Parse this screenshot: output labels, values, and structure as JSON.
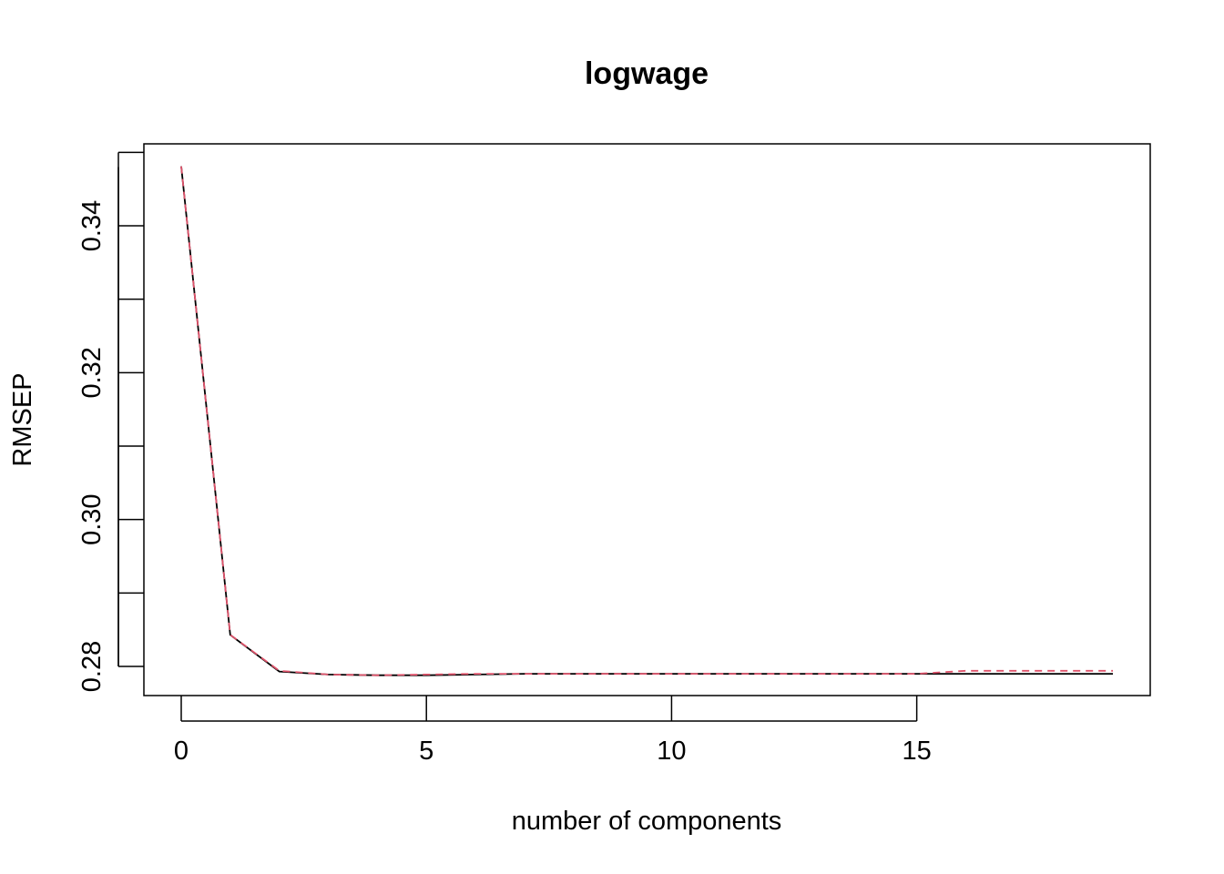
{
  "chart_data": {
    "type": "line",
    "title": "logwage",
    "xlabel": "number of components",
    "ylabel": "RMSEP",
    "xlim": [
      0,
      19
    ],
    "ylim": [
      0.276,
      0.35
    ],
    "x_ticks": [
      0,
      5,
      10,
      15
    ],
    "y_ticks_labeled": [
      0.28,
      0.3,
      0.32,
      0.34
    ],
    "y_ticks_minor": [
      0.29,
      0.31,
      0.33
    ],
    "x": [
      0,
      1,
      2,
      3,
      4,
      5,
      6,
      7,
      8,
      9,
      10,
      11,
      12,
      13,
      14,
      15,
      16,
      17,
      18,
      19
    ],
    "series": [
      {
        "style": "solid",
        "color": "#000000",
        "values": [
          0.3481,
          0.2843,
          0.2793,
          0.2789,
          0.2788,
          0.2788,
          0.2789,
          0.279,
          0.279,
          0.279,
          0.279,
          0.279,
          0.279,
          0.279,
          0.279,
          0.279,
          0.279,
          0.279,
          0.279,
          0.279
        ]
      },
      {
        "style": "dashed",
        "color": "#DF536B",
        "values": [
          0.3481,
          0.2843,
          0.2794,
          0.2789,
          0.2788,
          0.2789,
          0.279,
          0.279,
          0.279,
          0.279,
          0.279,
          0.279,
          0.279,
          0.279,
          0.279,
          0.279,
          0.2794,
          0.2794,
          0.2794,
          0.2794
        ]
      }
    ],
    "grid": false,
    "legend": "none"
  }
}
